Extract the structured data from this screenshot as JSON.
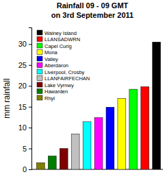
{
  "chart_data": {
    "type": "bar",
    "title": "Rainfall 09 - 09 GMT",
    "subtitle": "on 3rd September 2011",
    "y_label": "mm rainfall",
    "categories": [
      "Rhyl",
      "Hawarden",
      "Lake Vyrnwy",
      "LLANFAIRFECHAN",
      "Liverpool, Crosby",
      "Aberdaron",
      "Valley",
      "Mona",
      "Capel Curig",
      "LLANSADWRN",
      "Walney Island"
    ],
    "values": [
      1.6,
      3.2,
      5.0,
      8.5,
      11.4,
      12.4,
      14.9,
      17.0,
      19.2,
      19.8,
      30.5
    ],
    "colors": [
      "#808000",
      "#008000",
      "#800000",
      "#c0c0c0",
      "#00ffff",
      "#ff00ff",
      "#0000ff",
      "#ffff00",
      "#00ff00",
      "#ff0000",
      "#000000"
    ],
    "ylim": [
      0,
      34
    ],
    "yticks": [
      0,
      5,
      10,
      15,
      20,
      25,
      30
    ],
    "tick_labels": "y",
    "legend": "upper left"
  }
}
